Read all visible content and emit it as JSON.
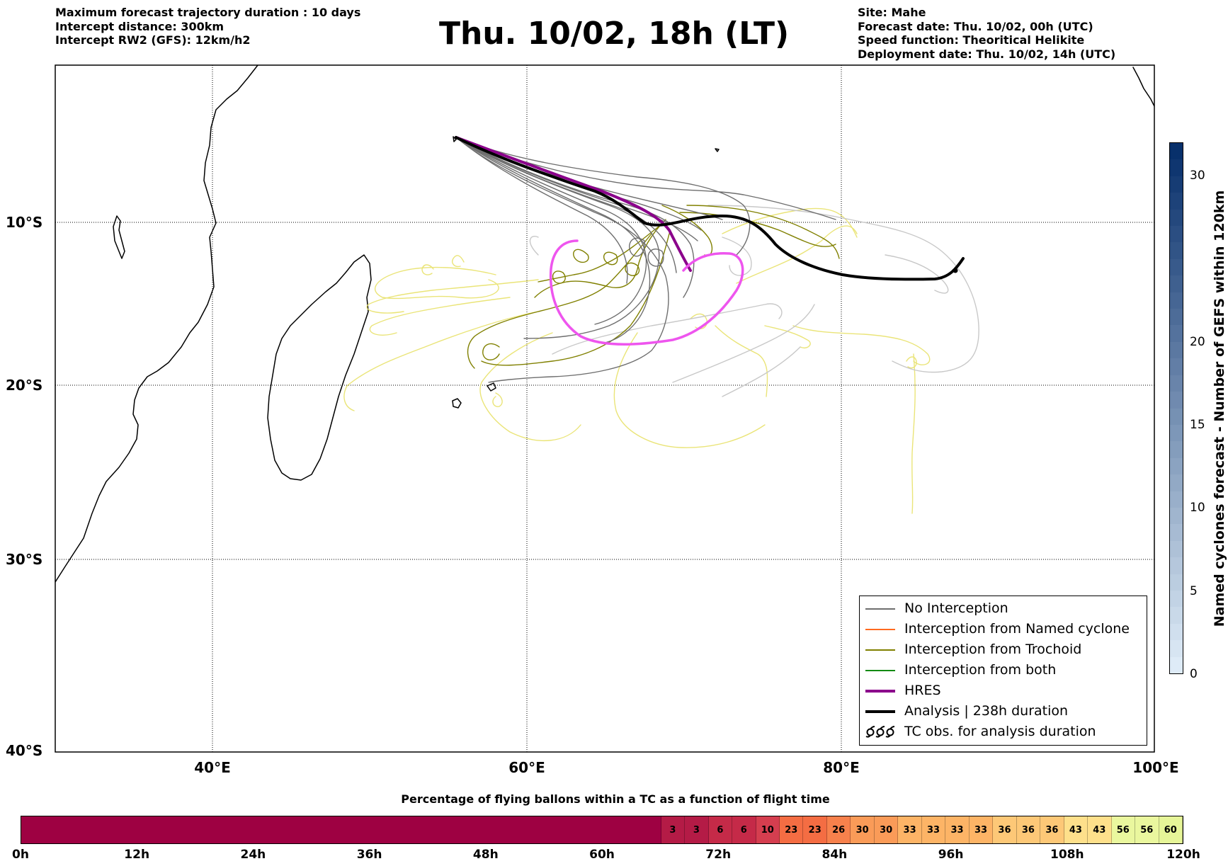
{
  "header": {
    "left": [
      "Maximum forecast trajectory duration : 10 days",
      "Intercept distance: 300km",
      "Intercept RW2 (GFS):  12km/h2"
    ],
    "title": "Thu. 10/02, 18h (LT)",
    "right": [
      "Site: Mahe",
      "Forecast date: Thu. 10/02, 00h (UTC)",
      "Speed function: Theoritical Helikite",
      "Deployment date: Thu. 10/02, 14h (UTC)"
    ]
  },
  "map": {
    "lat_labels": [
      "10°S",
      "20°S",
      "30°S",
      "40°S"
    ],
    "lon_labels": [
      "40°E",
      "60°E",
      "80°E",
      "100°E"
    ],
    "extent": {
      "lon": [
        30,
        100
      ],
      "lat": [
        -40,
        -1
      ]
    },
    "gridlines": "dotted",
    "site": {
      "name": "Mahe",
      "lon": 55.5,
      "lat": -4.6
    }
  },
  "legend": {
    "items": [
      {
        "label": "No Interception",
        "color": "#6e6e6e",
        "style": "thin"
      },
      {
        "label": "Interception from Named cyclone",
        "color": "#ff6a1f",
        "style": "thin"
      },
      {
        "label": "Interception from Trochoid",
        "color": "#808000",
        "style": "thin"
      },
      {
        "label": "Interception from both",
        "color": "#138a13",
        "style": "thin"
      },
      {
        "label": "HRES",
        "color": "#8b008b",
        "style": "thick"
      },
      {
        "label": "Analysis | 238h duration",
        "color": "#000000",
        "style": "thick"
      },
      {
        "label": "TC obs. for analysis duration",
        "color": "#000000",
        "style": "icon"
      }
    ]
  },
  "colorbar_right": {
    "label": "Named cyclones forecast - Number of GEFS within 120km",
    "ticks": [
      "0",
      "5",
      "10",
      "15",
      "20",
      "30"
    ],
    "range": [
      0,
      32
    ]
  },
  "colorbar_bottom": {
    "title": "Percentage of flying ballons within a TC as a function of flight time",
    "ticks": [
      "0h",
      "12h",
      "24h",
      "36h",
      "48h",
      "60h",
      "72h",
      "84h",
      "96h",
      "108h",
      "120h"
    ],
    "segments": [
      {
        "value": "",
        "span": 27,
        "color": "#9e0142"
      },
      {
        "value": "3",
        "span": 1,
        "color": "#b41b46"
      },
      {
        "value": "3",
        "span": 1,
        "color": "#b41b46"
      },
      {
        "value": "6",
        "span": 1,
        "color": "#c52a48"
      },
      {
        "value": "6",
        "span": 1,
        "color": "#c52a48"
      },
      {
        "value": "10",
        "span": 1,
        "color": "#d53e4f"
      },
      {
        "value": "23",
        "span": 1,
        "color": "#f46d43"
      },
      {
        "value": "23",
        "span": 1,
        "color": "#f46d43"
      },
      {
        "value": "26",
        "span": 1,
        "color": "#f7814c"
      },
      {
        "value": "30",
        "span": 1,
        "color": "#fa9b58"
      },
      {
        "value": "30",
        "span": 1,
        "color": "#fa9b58"
      },
      {
        "value": "33",
        "span": 1,
        "color": "#fdb466"
      },
      {
        "value": "33",
        "span": 1,
        "color": "#fdb466"
      },
      {
        "value": "33",
        "span": 1,
        "color": "#fdb466"
      },
      {
        "value": "33",
        "span": 1,
        "color": "#fdb466"
      },
      {
        "value": "36",
        "span": 1,
        "color": "#fdc877"
      },
      {
        "value": "36",
        "span": 1,
        "color": "#fdc877"
      },
      {
        "value": "36",
        "span": 1,
        "color": "#fdc877"
      },
      {
        "value": "43",
        "span": 1,
        "color": "#fee08b"
      },
      {
        "value": "43",
        "span": 1,
        "color": "#fee08b"
      },
      {
        "value": "56",
        "span": 1,
        "color": "#eaf79e"
      },
      {
        "value": "56",
        "span": 1,
        "color": "#eaf79e"
      },
      {
        "value": "60",
        "span": 1,
        "color": "#e6f598"
      }
    ]
  }
}
